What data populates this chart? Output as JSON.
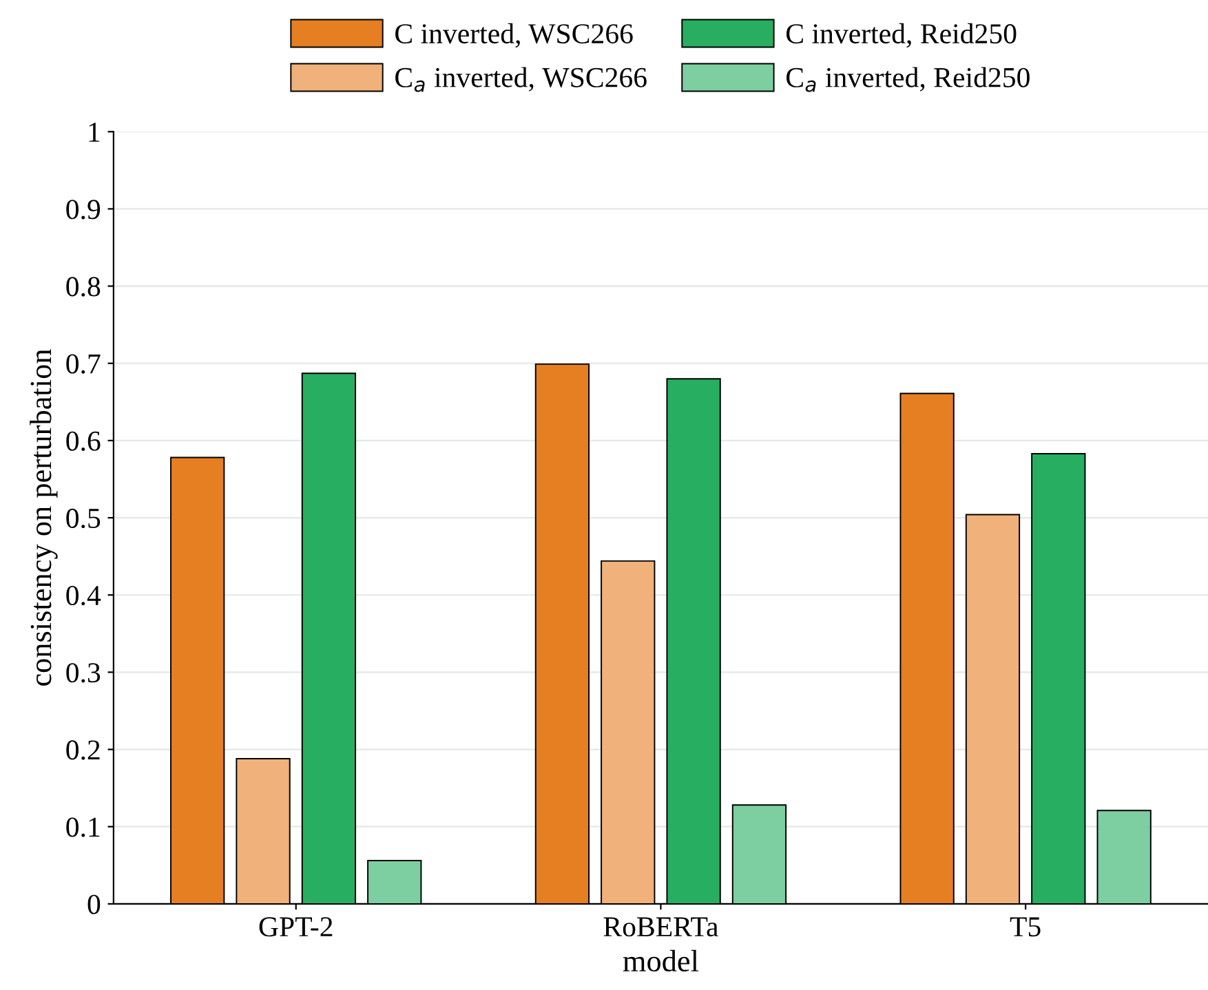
{
  "chart_data": {
    "type": "bar",
    "xlabel": "model",
    "ylabel": "consistency on perturbation",
    "categories": [
      "GPT-2",
      "RoBERTa",
      "T5"
    ],
    "series": [
      {
        "name": "C inverted, WSC266",
        "color": "#e67e22",
        "values": [
          0.578,
          0.699,
          0.661
        ]
      },
      {
        "name": "C$_{a}$ inverted, WSC266",
        "color": "#f0b27a",
        "values": [
          0.188,
          0.444,
          0.504
        ]
      },
      {
        "name": "C inverted, Reid250",
        "color": "#27ae60",
        "values": [
          0.687,
          0.68,
          0.583
        ]
      },
      {
        "name": "C$_{a}$ inverted, Reid250",
        "color": "#7dcea0",
        "values": [
          0.056,
          0.128,
          0.121
        ]
      }
    ],
    "ylim": [
      0,
      1
    ],
    "yticks": [
      0,
      0.1,
      0.2,
      0.3,
      0.4,
      0.5,
      0.6,
      0.7,
      0.8,
      0.9,
      1
    ],
    "grid": "y",
    "legend": "top"
  }
}
